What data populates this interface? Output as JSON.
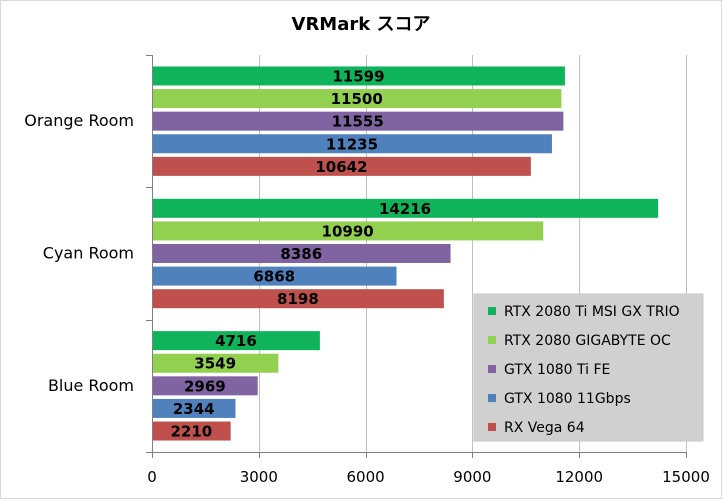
{
  "chart_data": {
    "type": "bar",
    "orientation": "horizontal",
    "title": "VRMark スコア",
    "xlabel": "",
    "ylabel": "",
    "categories": [
      "Orange Room",
      "Cyan Room",
      "Blue Room"
    ],
    "xlim": [
      0,
      15000
    ],
    "xticks": [
      0,
      3000,
      6000,
      9000,
      12000,
      15000
    ],
    "grid": true,
    "legend_position": "right",
    "series": [
      {
        "name": "RTX 2080 Ti MSI GX TRIO",
        "color": "#0fb45a",
        "values": [
          11599,
          14216,
          4716
        ]
      },
      {
        "name": "RTX 2080 GIGABYTE OC",
        "color": "#92d050",
        "values": [
          11500,
          10990,
          3549
        ]
      },
      {
        "name": "GTX 1080 Ti FE",
        "color": "#8064a2",
        "values": [
          11555,
          8386,
          2969
        ]
      },
      {
        "name": "GTX 1080 11Gbps",
        "color": "#4f81bd",
        "values": [
          11235,
          6868,
          2344
        ]
      },
      {
        "name": "RX Vega 64",
        "color": "#c0504d",
        "values": [
          10642,
          8198,
          2210
        ]
      }
    ]
  }
}
